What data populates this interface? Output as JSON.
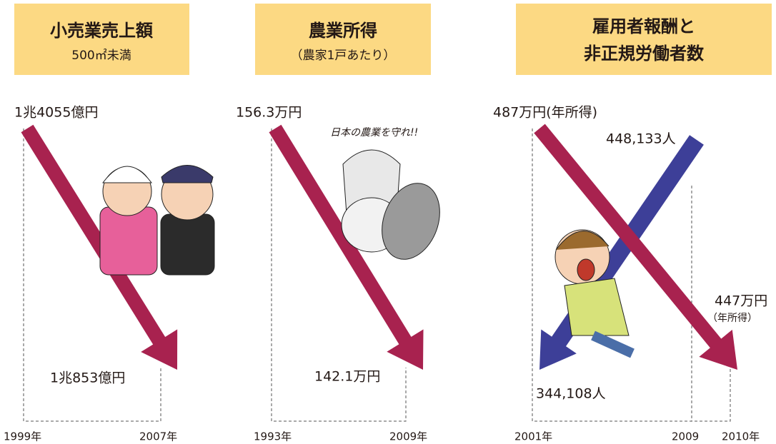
{
  "panels": [
    {
      "title": "小売業売上額",
      "subtitle": "500㎡未満",
      "start_label": "1兆4055億円",
      "end_label": "1兆853億円",
      "years": [
        "1999年",
        "2007年"
      ]
    },
    {
      "title": "農業所得",
      "subtitle": "（農家1戸あたり）",
      "start_label": "156.3万円",
      "end_label": "142.1万円",
      "years": [
        "1993年",
        "2009年"
      ],
      "illustration_text": "日本の農業を守れ!!"
    },
    {
      "title_lines": [
        "雇用者報酬と",
        "非正規労働者数"
      ],
      "income_start_label": "487万円(年所得)",
      "income_end_label": "447万円",
      "income_end_note": "（年所得）",
      "workers_start_label": "344,108人",
      "workers_end_label": "448,133人",
      "years": [
        "2001年",
        "2009",
        "2010年"
      ]
    }
  ]
}
